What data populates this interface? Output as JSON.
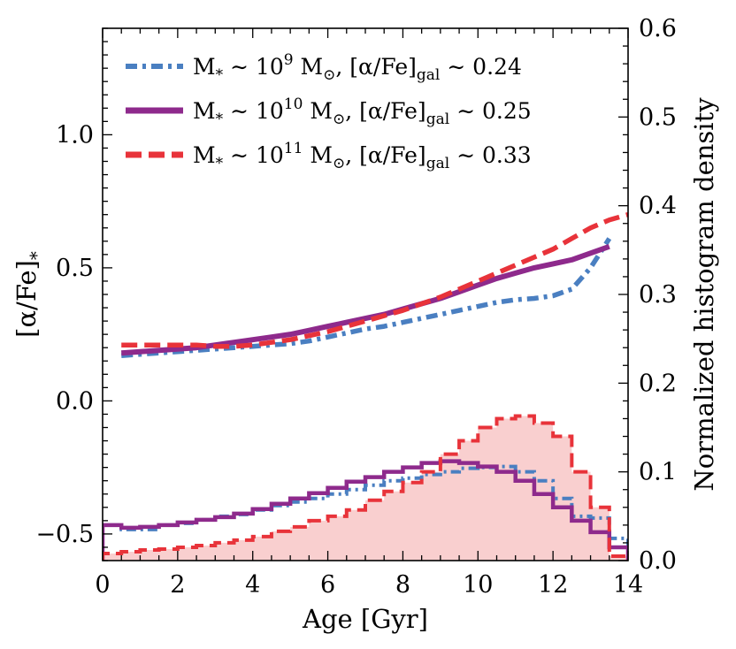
{
  "chart_data": {
    "type": "line",
    "xlabel": "Age [Gyr]",
    "ylabel": "[α/Fe]",
    "ylabel_sub": "*",
    "y2label": "Normalized histogram density",
    "xlim": [
      0,
      14
    ],
    "ylim": [
      -0.6,
      1.4
    ],
    "y2lim": [
      0,
      0.6
    ],
    "xticks": [
      0,
      2,
      4,
      6,
      8,
      10,
      12,
      14
    ],
    "xtick_labels": [
      "0",
      "2",
      "4",
      "6",
      "8",
      "10",
      "12",
      "14"
    ],
    "yticks": [
      -0.5,
      0.0,
      0.5,
      1.0
    ],
    "ytick_labels": [
      "−0.5",
      "0.0",
      "0.5",
      "1.0"
    ],
    "y2ticks": [
      0.0,
      0.1,
      0.2,
      0.3,
      0.4,
      0.5,
      0.6
    ],
    "y2tick_labels": [
      "0.0",
      "0.1",
      "0.2",
      "0.3",
      "0.4",
      "0.5",
      "0.6"
    ],
    "grid": false,
    "legend_position": "top-left",
    "series": [
      {
        "name": "M* ~ 10^9 M☉, [α/Fe]gal ~ 0.24",
        "legend": {
          "m_sym": "M",
          "sub_star": "*",
          "approx1": " ∼ 10",
          "exp": "9",
          "msun": " M",
          "sun": "⊙",
          "sep": ", [α/Fe]",
          "gal": "gal",
          "approx2": " ∼ 0.24"
        },
        "color": "#4a7fc1",
        "style": "dashdot",
        "x": [
          0.5,
          1.0,
          1.5,
          2.0,
          2.5,
          3.0,
          3.5,
          4.0,
          4.5,
          5.0,
          5.5,
          6.0,
          6.5,
          7.0,
          7.5,
          8.0,
          8.5,
          9.0,
          9.5,
          10.0,
          10.5,
          11.0,
          11.5,
          12.0,
          12.5,
          13.0,
          13.5
        ],
        "y": [
          0.17,
          0.175,
          0.18,
          0.185,
          0.19,
          0.195,
          0.2,
          0.205,
          0.21,
          0.215,
          0.225,
          0.24,
          0.255,
          0.27,
          0.28,
          0.295,
          0.31,
          0.325,
          0.34,
          0.355,
          0.37,
          0.38,
          0.385,
          0.395,
          0.42,
          0.5,
          0.61
        ],
        "hist_edges": [
          0,
          0.5,
          1,
          1.5,
          2,
          2.5,
          3,
          3.5,
          4,
          4.5,
          5,
          5.5,
          6,
          6.5,
          7,
          7.5,
          8,
          8.5,
          9,
          9.5,
          10,
          10.5,
          11,
          11.5,
          12,
          12.5,
          13,
          13.5,
          14
        ],
        "hist_density": [
          0.04,
          0.035,
          0.035,
          0.04,
          0.042,
          0.046,
          0.05,
          0.052,
          0.057,
          0.062,
          0.066,
          0.07,
          0.075,
          0.08,
          0.085,
          0.09,
          0.093,
          0.097,
          0.1,
          0.104,
          0.105,
          0.106,
          0.1,
          0.09,
          0.07,
          0.05,
          0.048,
          0.025
        ]
      },
      {
        "name": "M* ~ 10^10 M☉, [α/Fe]gal ~ 0.25",
        "legend": {
          "m_sym": "M",
          "sub_star": "*",
          "approx1": " ∼ 10",
          "exp": "10",
          "msun": " M",
          "sun": "⊙",
          "sep": ", [α/Fe]",
          "gal": "gal",
          "approx2": " ∼ 0.25"
        },
        "color": "#8e2a8c",
        "style": "solid",
        "x": [
          0.5,
          1.0,
          1.5,
          2.0,
          2.5,
          3.0,
          3.5,
          4.0,
          4.5,
          5.0,
          5.5,
          6.0,
          6.5,
          7.0,
          7.5,
          8.0,
          8.5,
          9.0,
          9.5,
          10.0,
          10.5,
          11.0,
          11.5,
          12.0,
          12.5,
          13.0,
          13.5
        ],
        "y": [
          0.18,
          0.185,
          0.19,
          0.195,
          0.2,
          0.21,
          0.22,
          0.23,
          0.24,
          0.25,
          0.265,
          0.28,
          0.295,
          0.31,
          0.325,
          0.345,
          0.365,
          0.385,
          0.41,
          0.435,
          0.46,
          0.48,
          0.5,
          0.515,
          0.53,
          0.555,
          0.58
        ],
        "hist_edges": [
          0,
          0.5,
          1,
          1.5,
          2,
          2.5,
          3,
          3.5,
          4,
          4.5,
          5,
          5.5,
          6,
          6.5,
          7,
          7.5,
          8,
          8.5,
          9,
          9.5,
          10,
          10.5,
          11,
          11.5,
          12,
          12.5,
          13,
          13.5,
          14
        ],
        "hist_density": [
          0.04,
          0.037,
          0.038,
          0.04,
          0.043,
          0.046,
          0.049,
          0.053,
          0.058,
          0.064,
          0.07,
          0.076,
          0.082,
          0.089,
          0.094,
          0.1,
          0.105,
          0.11,
          0.112,
          0.11,
          0.106,
          0.1,
          0.09,
          0.075,
          0.06,
          0.045,
          0.032,
          0.015
        ]
      },
      {
        "name": "M* ~ 10^11 M☉, [α/Fe]gal ~ 0.33",
        "legend": {
          "m_sym": "M",
          "sub_star": "*",
          "approx1": " ∼ 10",
          "exp": "11",
          "msun": " M",
          "sun": "⊙",
          "sep": ", [α/Fe]",
          "gal": "gal",
          "approx2": " ∼ 0.33"
        },
        "color": "#e8333a",
        "style": "dashed",
        "x": [
          0.5,
          1.0,
          1.5,
          2.0,
          2.5,
          3.0,
          3.5,
          4.0,
          4.5,
          5.0,
          5.5,
          6.0,
          6.5,
          7.0,
          7.5,
          8.0,
          8.5,
          9.0,
          9.5,
          10.0,
          10.5,
          11.0,
          11.5,
          12.0,
          12.5,
          13.0,
          13.5,
          14.0
        ],
        "y": [
          0.21,
          0.21,
          0.21,
          0.21,
          0.21,
          0.205,
          0.205,
          0.21,
          0.22,
          0.23,
          0.245,
          0.26,
          0.28,
          0.3,
          0.32,
          0.34,
          0.365,
          0.39,
          0.42,
          0.45,
          0.48,
          0.51,
          0.54,
          0.57,
          0.61,
          0.65,
          0.68,
          0.7
        ],
        "hist_edges": [
          0,
          0.5,
          1,
          1.5,
          2,
          2.5,
          3,
          3.5,
          4,
          4.5,
          5,
          5.5,
          6,
          6.5,
          7,
          7.5,
          8,
          8.5,
          9,
          9.5,
          10,
          10.5,
          11,
          11.5,
          12,
          12.5,
          13,
          13.5,
          14
        ],
        "hist_density": [
          0.008,
          0.01,
          0.012,
          0.013,
          0.015,
          0.017,
          0.02,
          0.023,
          0.027,
          0.033,
          0.038,
          0.045,
          0.05,
          0.057,
          0.068,
          0.078,
          0.088,
          0.1,
          0.12,
          0.135,
          0.15,
          0.16,
          0.163,
          0.155,
          0.14,
          0.1,
          0.06,
          0.005
        ]
      }
    ]
  }
}
